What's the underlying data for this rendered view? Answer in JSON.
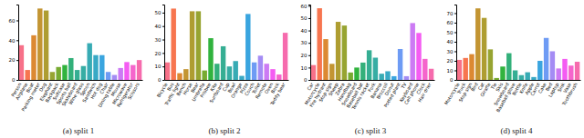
{
  "chart_data": [
    {
      "type": "bar",
      "title": "(a) split 1",
      "categories": [
        "Person",
        "Airplane",
        "Boat",
        "Parking meter",
        "Dog",
        "Elephant",
        "Backpack",
        "Suitcase",
        "Sports ball",
        "Skateboard",
        "Wine glass",
        "Spoon",
        "Sandwich",
        "Hot dog",
        "Chair",
        "Dining table",
        "Mouse",
        "Microwave",
        "Refrigerator",
        "Scissors"
      ],
      "values": [
        35,
        10,
        45,
        72,
        70,
        8,
        13,
        15,
        22,
        10,
        14,
        37,
        25,
        25,
        8,
        5,
        12,
        18,
        15,
        20
      ],
      "colors": [
        "#f77189",
        "#f7754f",
        "#dc8932",
        "#c39532",
        "#ae9d31",
        "#97a431",
        "#77ab31",
        "#31b33e",
        "#33b07a",
        "#35ae93",
        "#36ada4",
        "#37abb4",
        "#38a9c5",
        "#3aa5df",
        "#6e9bf4",
        "#a48cf4",
        "#cc7af4",
        "#f45cf2",
        "#f565cc",
        "#f66bad"
      ],
      "ylim": [
        0,
        76
      ],
      "yticks": [
        0,
        20,
        40,
        60
      ]
    },
    {
      "type": "bar",
      "title": "(b) split 2",
      "categories": [
        "Bicycle",
        "Bus",
        "Traffic light",
        "Bench",
        "Horse",
        "Bear",
        "Umbrella",
        "Frisbee",
        "Kite",
        "Surfboard",
        "Cup",
        "Bowl",
        "Orange",
        "Pizza",
        "Couch",
        "Toilet",
        "Remote",
        "Oven",
        "Book",
        "Teddy bear"
      ],
      "values": [
        13,
        53,
        5,
        8,
        51,
        51,
        7,
        31,
        12,
        25,
        10,
        14,
        3,
        49,
        13,
        18,
        12,
        8,
        4,
        35
      ],
      "colors": [
        "#f77189",
        "#f7754f",
        "#dc8932",
        "#c39532",
        "#ae9d31",
        "#97a431",
        "#77ab31",
        "#31b33e",
        "#33b07a",
        "#35ae93",
        "#36ada4",
        "#37abb4",
        "#38a9c5",
        "#3aa5df",
        "#6e9bf4",
        "#a48cf4",
        "#cc7af4",
        "#f45cf2",
        "#f565cc",
        "#f66bad"
      ],
      "ylim": [
        0,
        56
      ],
      "yticks": [
        0,
        10,
        20,
        30,
        40,
        50
      ]
    },
    {
      "type": "bar",
      "title": "(c) split 3",
      "categories": [
        "Car",
        "Motorcycle",
        "Fire hydrant",
        "Stop sign",
        "Sheep",
        "Zebra",
        "Handbag",
        "Snowboard",
        "Baseball bat",
        "Tennis racket",
        "Fork",
        "Banana",
        "Broccoli",
        "Donut",
        "Potted plant",
        "TV",
        "Keyboard",
        "Cell phone",
        "Clock",
        "Hair drier"
      ],
      "values": [
        12,
        58,
        33,
        13,
        47,
        44,
        6,
        10,
        14,
        24,
        18,
        5,
        7,
        3,
        25,
        3,
        46,
        38,
        17,
        9
      ],
      "colors": [
        "#f77189",
        "#f7754f",
        "#dc8932",
        "#c39532",
        "#ae9d31",
        "#97a431",
        "#77ab31",
        "#31b33e",
        "#33b07a",
        "#35ae93",
        "#36ada4",
        "#37abb4",
        "#38a9c5",
        "#3aa5df",
        "#6e9bf4",
        "#a48cf4",
        "#cc7af4",
        "#f45cf2",
        "#f565cc",
        "#f66bad"
      ],
      "ylim": [
        0,
        61
      ],
      "yticks": [
        0,
        10,
        20,
        30,
        40,
        50,
        60
      ]
    },
    {
      "type": "bar",
      "title": "(d) split 4",
      "categories": [
        "Motorcycle",
        "Truck",
        "Stop sign",
        "Bird",
        "Cat",
        "Giraffe",
        "Tie",
        "Skis",
        "Snowboard",
        "Baseball glove",
        "Bottle",
        "Knife",
        "Apple",
        "Carrot",
        "Cake",
        "Bed",
        "Laptop",
        "Sink",
        "Vase",
        "Toothbrush"
      ],
      "values": [
        21,
        23,
        27,
        75,
        65,
        32,
        2,
        14,
        28,
        10,
        5,
        8,
        3,
        20,
        44,
        30,
        12,
        22,
        15,
        19
      ],
      "colors": [
        "#f77189",
        "#f7754f",
        "#dc8932",
        "#c39532",
        "#ae9d31",
        "#97a431",
        "#77ab31",
        "#31b33e",
        "#33b07a",
        "#35ae93",
        "#36ada4",
        "#37abb4",
        "#38a9c5",
        "#3aa5df",
        "#6e9bf4",
        "#a48cf4",
        "#cc7af4",
        "#f45cf2",
        "#f565cc",
        "#f66bad"
      ],
      "ylim": [
        0,
        79
      ],
      "yticks": [
        0,
        10,
        20,
        30,
        40,
        50,
        60,
        70
      ]
    }
  ]
}
